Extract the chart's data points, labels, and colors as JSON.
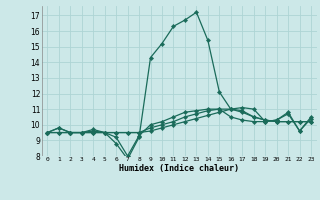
{
  "xlabel": "Humidex (Indice chaleur)",
  "ylabel": "",
  "background_color": "#cce8e8",
  "grid_color": "#aed4d4",
  "line_color": "#1a6b5a",
  "xlim": [
    -0.5,
    23.5
  ],
  "ylim": [
    8,
    17.6
  ],
  "yticks": [
    8,
    9,
    10,
    11,
    12,
    13,
    14,
    15,
    16,
    17
  ],
  "xticks": [
    0,
    1,
    2,
    3,
    4,
    5,
    6,
    7,
    8,
    9,
    10,
    11,
    12,
    13,
    14,
    15,
    16,
    17,
    18,
    19,
    20,
    21,
    22,
    23
  ],
  "series": [
    [
      9.5,
      9.8,
      9.5,
      9.5,
      9.6,
      9.5,
      9.2,
      8.0,
      9.3,
      10.0,
      10.2,
      10.5,
      10.8,
      10.9,
      11.0,
      11.0,
      10.5,
      10.3,
      10.2,
      10.2,
      10.3,
      10.8,
      9.6,
      10.5
    ],
    [
      9.5,
      9.5,
      9.5,
      9.5,
      9.5,
      9.5,
      9.5,
      9.5,
      9.5,
      9.8,
      10.0,
      10.2,
      10.5,
      10.7,
      10.9,
      11.0,
      11.0,
      10.8,
      10.5,
      10.3,
      10.2,
      10.2,
      10.2,
      10.2
    ],
    [
      9.5,
      9.5,
      9.5,
      9.5,
      9.5,
      9.5,
      9.5,
      9.5,
      9.5,
      9.6,
      9.8,
      10.0,
      10.2,
      10.4,
      10.6,
      10.8,
      11.0,
      10.9,
      10.5,
      10.3,
      10.2,
      10.2,
      10.2,
      10.2
    ],
    [
      9.5,
      9.8,
      9.5,
      9.5,
      9.7,
      9.5,
      8.8,
      7.8,
      9.2,
      14.3,
      15.2,
      16.3,
      16.7,
      17.2,
      15.4,
      12.1,
      11.0,
      11.1,
      11.0,
      10.2,
      10.3,
      10.7,
      9.6,
      10.4
    ]
  ],
  "marker": "D",
  "markersize": 2.2,
  "linewidth": 0.9
}
